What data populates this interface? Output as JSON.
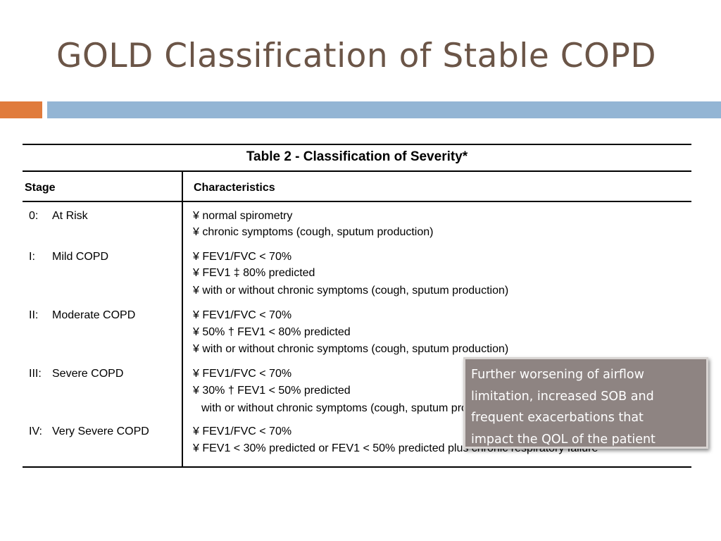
{
  "slide": {
    "title": "GOLD Classification of Stable COPD",
    "accent_colors": {
      "orange": "#e07b3c",
      "blue": "#93b5d4",
      "title_text": "#6b5547",
      "callout_bg": "#8e8482"
    }
  },
  "table": {
    "caption": "Table 2 - Classification of Severity*",
    "headers": {
      "stage": "Stage",
      "characteristics": "Characteristics"
    },
    "rows": [
      {
        "stage_num": "0:",
        "stage_name": "At Risk",
        "lines": [
          "¥  normal spirometry",
          "¥  chronic symptoms (cough, sputum production)"
        ]
      },
      {
        "stage_num": "I:",
        "stage_name": "Mild COPD",
        "lines": [
          "¥  FEV1/FVC < 70%",
          "¥  FEV1 ‡ 80% predicted",
          "¥  with or without chronic symptoms (cough, sputum production)"
        ]
      },
      {
        "stage_num": "II:",
        "stage_name": "Moderate COPD",
        "lines": [
          "¥  FEV1/FVC < 70%",
          "¥  50% † FEV1 < 80% predicted",
          "¥  with or without chronic symptoms (cough, sputum production)"
        ]
      },
      {
        "stage_num": "III:",
        "stage_name": "Severe COPD",
        "lines": [
          "¥  FEV1/FVC < 70%",
          "¥  30% † FEV1 < 50% predicted",
          "with or without chronic symptoms (cough, sputum production)"
        ]
      },
      {
        "stage_num": "IV:",
        "stage_name": "Very Severe COPD",
        "lines": [
          "¥  FEV1/FVC < 70%",
          "¥  FEV1 < 30% predicted or FEV1 < 50% predicted plus chronic respiratory failure"
        ]
      }
    ]
  },
  "callout": {
    "lines": [
      "Further worsening of airflow",
      "limitation, increased SOB and",
      "frequent exacerbations that",
      "impact the QOL of the patient"
    ]
  }
}
